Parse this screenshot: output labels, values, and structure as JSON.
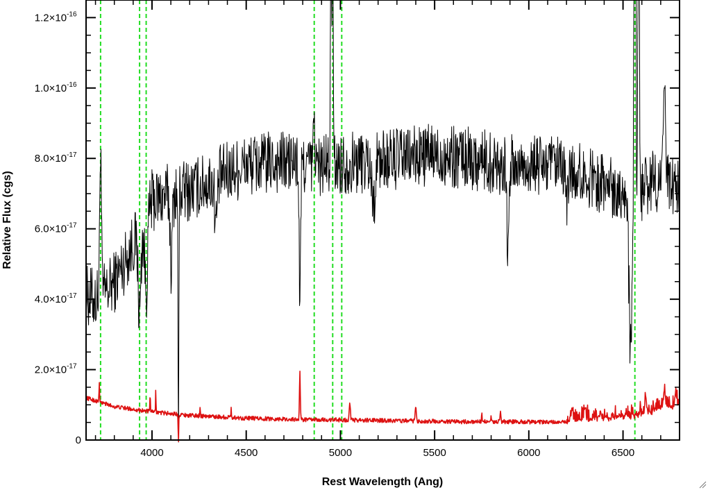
{
  "chart_data": {
    "type": "line",
    "xlabel": "Rest Wavelength (Ang)",
    "ylabel": "Relative Flux (cgs)",
    "xlim": [
      3650,
      6800
    ],
    "ylim": [
      0,
      1.25e-16
    ],
    "grid": false,
    "x_ticks": [
      {
        "value": 4000,
        "label": "4000"
      },
      {
        "value": 4500,
        "label": "4500"
      },
      {
        "value": 5000,
        "label": "5000"
      },
      {
        "value": 5500,
        "label": "5500"
      },
      {
        "value": 6000,
        "label": "6000"
      },
      {
        "value": 6500,
        "label": "6500"
      }
    ],
    "y_ticks": [
      {
        "value": 0,
        "mantissa": "0",
        "exponent": ""
      },
      {
        "value": 2e-17,
        "mantissa": "2.0×10",
        "exponent": "-17"
      },
      {
        "value": 4e-17,
        "mantissa": "4.0×10",
        "exponent": "-17"
      },
      {
        "value": 6e-17,
        "mantissa": "6.0×10",
        "exponent": "-17"
      },
      {
        "value": 8e-17,
        "mantissa": "8.0×10",
        "exponent": "-17"
      },
      {
        "value": 1e-16,
        "mantissa": "1.0×10",
        "exponent": "-16"
      },
      {
        "value": 1.2e-16,
        "mantissa": "1.2×10",
        "exponent": "-16"
      }
    ],
    "vertical_lines": {
      "color": "#22dd22",
      "style": "dashed",
      "x": [
        3727,
        3934,
        3969,
        4861,
        4959,
        5007,
        6563
      ]
    },
    "series": [
      {
        "color": "#000000",
        "noise": 9e-18,
        "continuum": [
          [
            3650,
            4.1e-17
          ],
          [
            3700,
            4e-17
          ],
          [
            3760,
            4.2e-17
          ],
          [
            3800,
            4.5e-17
          ],
          [
            3850,
            5e-17
          ],
          [
            3900,
            5.6e-17
          ],
          [
            3950,
            5.9e-17
          ],
          [
            4000,
            6.8e-17
          ],
          [
            4100,
            7e-17
          ],
          [
            4200,
            7.1e-17
          ],
          [
            4300,
            7.3e-17
          ],
          [
            4400,
            7.6e-17
          ],
          [
            4500,
            7.8e-17
          ],
          [
            4700,
            7.9e-17
          ],
          [
            4900,
            7.8e-17
          ],
          [
            5100,
            7.9e-17
          ],
          [
            5300,
            8e-17
          ],
          [
            5500,
            8.1e-17
          ],
          [
            5700,
            8e-17
          ],
          [
            5900,
            7.8e-17
          ],
          [
            6100,
            7.8e-17
          ],
          [
            6300,
            7.5e-17
          ],
          [
            6500,
            7.1e-17
          ],
          [
            6560,
            6.8e-17
          ],
          [
            6650,
            7.4e-17
          ],
          [
            6800,
            7.2e-17
          ]
        ],
        "features": [
          [
            3727,
            4.4e-17,
            6
          ],
          [
            3934,
            -2.2e-17,
            10
          ],
          [
            3969,
            -2e-17,
            10
          ],
          [
            4102,
            -2e-17,
            8
          ],
          [
            4140,
            -7.5e-17,
            3
          ],
          [
            4340,
            -1.2e-17,
            10
          ],
          [
            4785,
            -3.8e-17,
            6
          ],
          [
            4861,
            1.5e-17,
            5
          ],
          [
            4950,
            1.5e-16,
            3
          ],
          [
            4959,
            1.5e-16,
            3
          ],
          [
            5175,
            -1.2e-17,
            12
          ],
          [
            5890,
            -2.8e-17,
            7
          ],
          [
            6200,
            -8e-18,
            10
          ],
          [
            6540,
            -4.5e-17,
            12
          ],
          [
            6563,
            2.5e-16,
            5
          ],
          [
            6583,
            2e-16,
            4
          ],
          [
            6720,
            2.5e-17,
            8
          ]
        ]
      },
      {
        "color": "#dd1111",
        "noise": 6e-19,
        "continuum": [
          [
            3650,
            1.2e-17
          ],
          [
            3800,
            9.5e-18
          ],
          [
            4000,
            8e-18
          ],
          [
            4200,
            7e-18
          ],
          [
            4500,
            6.2e-18
          ],
          [
            4800,
            5.8e-18
          ],
          [
            5000,
            5.7e-18
          ],
          [
            5300,
            5.5e-18
          ],
          [
            5600,
            5.2e-18
          ],
          [
            5900,
            5.2e-18
          ],
          [
            6200,
            5e-18
          ],
          [
            6500,
            6e-18
          ],
          [
            6600,
            7e-18
          ],
          [
            6700,
            8.5e-18
          ],
          [
            6800,
            9.5e-18
          ]
        ],
        "features": [
          [
            3720,
            6e-18,
            2
          ],
          [
            3990,
            5e-18,
            2
          ],
          [
            4020,
            6e-18,
            2
          ],
          [
            4140,
            -8e-18,
            2
          ],
          [
            4255,
            3e-18,
            2
          ],
          [
            4420,
            3e-18,
            2
          ],
          [
            4785,
            1.4e-17,
            3
          ],
          [
            5050,
            5e-18,
            4
          ],
          [
            5400,
            4e-18,
            4
          ],
          [
            5750,
            3e-18,
            2
          ],
          [
            5800,
            2.5e-18,
            2
          ],
          [
            5850,
            3e-18,
            3
          ],
          [
            6230,
            3e-18,
            5
          ],
          [
            6300,
            3e-18,
            5
          ],
          [
            6380,
            2.5e-18,
            5
          ],
          [
            6620,
            4e-18,
            6
          ],
          [
            6720,
            4.5e-18,
            6
          ],
          [
            6780,
            3.5e-18,
            6
          ]
        ],
        "jitter_from": 6200,
        "jitter_amp": 4e-18
      }
    ]
  }
}
